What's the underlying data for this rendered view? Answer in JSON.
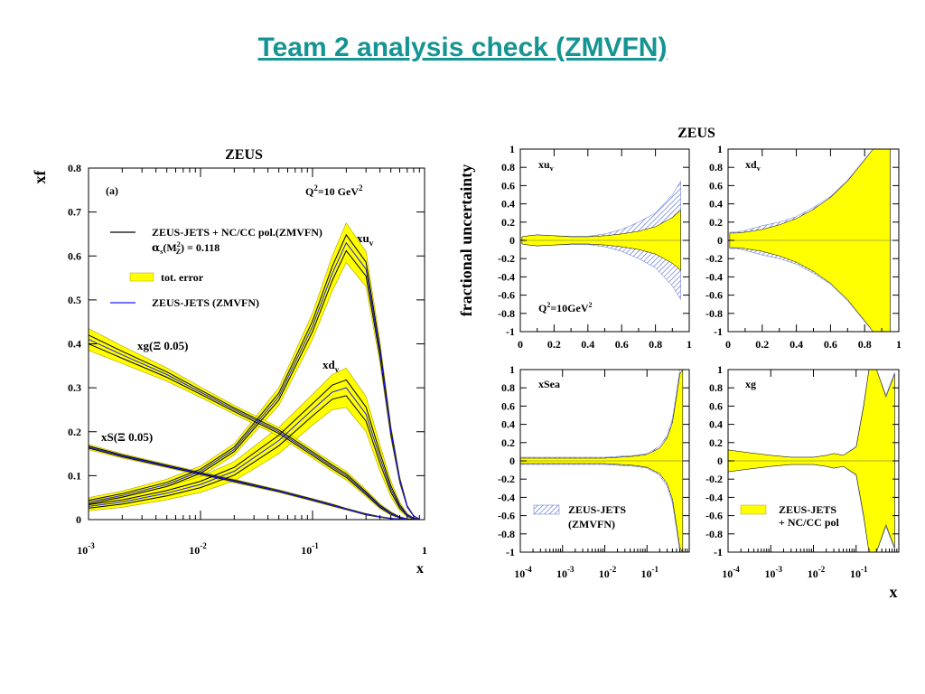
{
  "slide": {
    "title": "Team 2 analysis check (ZMVFN)"
  },
  "colors": {
    "band": "#ffff00",
    "band_edge": "#b0a000",
    "line": "#000000",
    "line_blue": "#1a1aff",
    "hatch": "#5a6ed0",
    "title": "#159494"
  },
  "chart_data": [
    {
      "type": "line",
      "title": "ZEUS",
      "xlabel": "x",
      "ylabel": "xf",
      "xscale": "log",
      "xlim": [
        0.001,
        1
      ],
      "ylim": [
        0,
        0.8
      ],
      "xticks": [
        0.001,
        0.01,
        0.1,
        1
      ],
      "yticks": [
        0,
        0.1,
        0.2,
        0.3,
        0.4,
        0.5,
        0.6,
        0.7,
        0.8
      ],
      "ytick_labels": [
        "0",
        "0.1",
        "0.2",
        "0.3",
        "0.4",
        "0.5",
        "0.6",
        "0.7",
        "0.8"
      ],
      "panel_label": "(a)",
      "q2_label": "Q",
      "q2_value": "=10 GeV",
      "legend": {
        "fit_label": "ZEUS-JETS + NC/CC pol.(ZMVFN)",
        "alpha_label": "(M",
        "alpha_value": ") = 0.118",
        "band_label": "tot. error",
        "blue_label": "ZEUS-JETS (ZMVFN)"
      },
      "x": [
        0.001,
        0.002,
        0.005,
        0.01,
        0.02,
        0.05,
        0.1,
        0.15,
        0.2,
        0.3,
        0.4,
        0.5,
        0.6,
        0.7,
        0.8,
        0.9
      ],
      "series": [
        {
          "name": "xu",
          "sub": "v",
          "values": [
            0.04,
            0.055,
            0.08,
            0.11,
            0.16,
            0.28,
            0.44,
            0.56,
            0.63,
            0.57,
            0.38,
            0.2,
            0.09,
            0.03,
            0.008,
            0.001
          ],
          "err": [
            0.01,
            0.01,
            0.012,
            0.012,
            0.013,
            0.02,
            0.03,
            0.04,
            0.045,
            0.04,
            0.025,
            0.015,
            0.008,
            0.003,
            0.001,
            0.0005
          ]
        },
        {
          "name": "xd",
          "sub": "v",
          "values": [
            0.03,
            0.04,
            0.06,
            0.08,
            0.11,
            0.18,
            0.25,
            0.29,
            0.3,
            0.24,
            0.14,
            0.07,
            0.03,
            0.01,
            0.002,
            0.0003
          ],
          "err": [
            0.01,
            0.012,
            0.015,
            0.018,
            0.022,
            0.03,
            0.035,
            0.04,
            0.045,
            0.04,
            0.03,
            0.018,
            0.01,
            0.004,
            0.002,
            0.0005
          ]
        },
        {
          "name": "xg(Ξ 0.05)",
          "values": [
            0.41,
            0.375,
            0.33,
            0.29,
            0.25,
            0.2,
            0.15,
            0.12,
            0.1,
            0.06,
            0.03,
            0.014,
            0.005,
            0.001,
            0.0002,
            0
          ],
          "err": [
            0.025,
            0.02,
            0.015,
            0.012,
            0.01,
            0.01,
            0.01,
            0.01,
            0.01,
            0.008,
            0.006,
            0.004,
            0.002,
            0.001,
            0.0005,
            0
          ]
        },
        {
          "name": "xS(Ξ 0.05)",
          "values": [
            0.165,
            0.145,
            0.122,
            0.105,
            0.088,
            0.065,
            0.045,
            0.033,
            0.024,
            0.012,
            0.006,
            0.0025,
            0.001,
            0.0003,
            0.0001,
            0
          ],
          "err": [
            0.006,
            0.005,
            0.004,
            0.004,
            0.004,
            0.003,
            0.003,
            0.003,
            0.002,
            0.002,
            0.001,
            0.0008,
            0.0005,
            0.0002,
            0.0001,
            0
          ]
        }
      ]
    },
    {
      "type": "area",
      "title": "ZEUS",
      "ylabel": "fractional uncertainty",
      "xlabel": "x",
      "ylim": [
        -1,
        1
      ],
      "yticks": [
        -1,
        -0.8,
        -0.6,
        -0.4,
        -0.2,
        0,
        0.2,
        0.4,
        0.6,
        0.8,
        1
      ],
      "ytick_labels": [
        "-1",
        "-0.8",
        "-0.6",
        "-0.4",
        "-0.2",
        "0",
        "0.2",
        "0.4",
        "0.6",
        "0.8",
        "1"
      ],
      "panels": [
        {
          "name": "xu",
          "sub": "v",
          "xscale": "linear",
          "xlim": [
            0,
            1
          ],
          "xticks": [
            0,
            0.2,
            0.4,
            0.6,
            0.8,
            1
          ],
          "xtick_labels": [
            "0",
            "0.2",
            "0.4",
            "0.6",
            "0.8",
            "1"
          ],
          "q2_label": "Q",
          "q2_value": "=10GeV",
          "x": [
            0.01,
            0.05,
            0.1,
            0.2,
            0.3,
            0.4,
            0.5,
            0.6,
            0.7,
            0.8,
            0.9,
            0.95
          ],
          "band": [
            0.04,
            0.05,
            0.06,
            0.05,
            0.04,
            0.04,
            0.05,
            0.07,
            0.1,
            0.15,
            0.25,
            0.33
          ],
          "hatch": [
            0.04,
            0.05,
            0.06,
            0.05,
            0.045,
            0.045,
            0.07,
            0.12,
            0.2,
            0.3,
            0.5,
            0.65
          ]
        },
        {
          "name": "xd",
          "sub": "v",
          "xscale": "linear",
          "xlim": [
            0,
            1
          ],
          "xticks": [
            0,
            0.2,
            0.4,
            0.6,
            0.8,
            1
          ],
          "xtick_labels": [
            "0",
            "0.2",
            "0.4",
            "0.6",
            "0.8",
            "1"
          ],
          "x": [
            0.01,
            0.05,
            0.1,
            0.2,
            0.3,
            0.4,
            0.5,
            0.6,
            0.7,
            0.8,
            0.85,
            0.9,
            0.95
          ],
          "band": [
            0.08,
            0.08,
            0.09,
            0.12,
            0.17,
            0.24,
            0.34,
            0.47,
            0.65,
            0.88,
            1.0,
            1.0,
            1.0
          ],
          "hatch": [
            0.09,
            0.09,
            0.11,
            0.16,
            0.2,
            0.26,
            0.36,
            0.48,
            0.66,
            0.89,
            1.0,
            1.0,
            1.0
          ]
        },
        {
          "name": "xSea",
          "xscale": "log",
          "xlim": [
            0.0001,
            1
          ],
          "xticks": [
            0.0001,
            0.001,
            0.01,
            0.1
          ],
          "legend_label": "ZEUS-JETS",
          "legend_label2": "(ZMVFN)",
          "x": [
            0.0001,
            0.001,
            0.01,
            0.05,
            0.1,
            0.2,
            0.3,
            0.4,
            0.5,
            0.6,
            0.7
          ],
          "band": [
            0.03,
            0.03,
            0.03,
            0.05,
            0.07,
            0.14,
            0.25,
            0.42,
            0.7,
            0.95,
            1.0
          ],
          "hatch": [
            0.04,
            0.04,
            0.04,
            0.06,
            0.08,
            0.16,
            0.28,
            0.46,
            0.75,
            1.0,
            1.0
          ]
        },
        {
          "name": "xg",
          "xscale": "log",
          "xlim": [
            0.0001,
            1
          ],
          "xticks": [
            0.0001,
            0.001,
            0.01,
            0.1
          ],
          "legend_label": "ZEUS-JETS",
          "legend_label2": "+ NC/CC pol",
          "x": [
            0.0001,
            0.0003,
            0.001,
            0.003,
            0.01,
            0.02,
            0.03,
            0.05,
            0.1,
            0.15,
            0.2,
            0.3,
            0.5,
            0.8
          ],
          "band": [
            0.12,
            0.09,
            0.06,
            0.04,
            0.04,
            0.06,
            0.08,
            0.06,
            0.15,
            0.6,
            1.0,
            1.0,
            0.7,
            0.95
          ],
          "hatch": [
            0.12,
            0.09,
            0.06,
            0.04,
            0.04,
            0.06,
            0.08,
            0.06,
            0.16,
            0.62,
            1.0,
            1.0,
            0.72,
            0.97
          ]
        }
      ]
    }
  ]
}
